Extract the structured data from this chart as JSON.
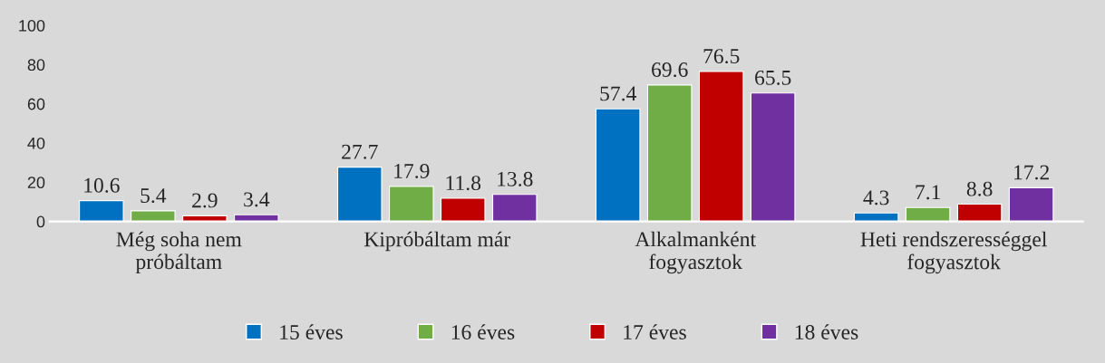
{
  "chart_data": {
    "type": "bar",
    "categories": [
      "Még soha nem\npróbáltam",
      "Kipróbáltam már",
      "Alkalmanként\nfogyasztok",
      "Heti rendszerességgel\nfogyasztok"
    ],
    "series": [
      {
        "name": "15 éves",
        "color": "#0070c0",
        "values": [
          10.6,
          27.7,
          57.4,
          4.3
        ]
      },
      {
        "name": "16 éves",
        "color": "#70ad47",
        "values": [
          5.4,
          17.9,
          69.6,
          7.1
        ]
      },
      {
        "name": "17 éves",
        "color": "#c00000",
        "values": [
          2.9,
          11.8,
          76.5,
          8.8
        ]
      },
      {
        "name": "18 éves",
        "color": "#7030a0",
        "values": [
          3.4,
          13.8,
          65.5,
          17.2
        ]
      }
    ],
    "ylim": [
      0,
      100
    ],
    "yticks": [
      0,
      20,
      40,
      60,
      80,
      100
    ],
    "grid": false,
    "legend": "bottom",
    "data_labels": true
  }
}
